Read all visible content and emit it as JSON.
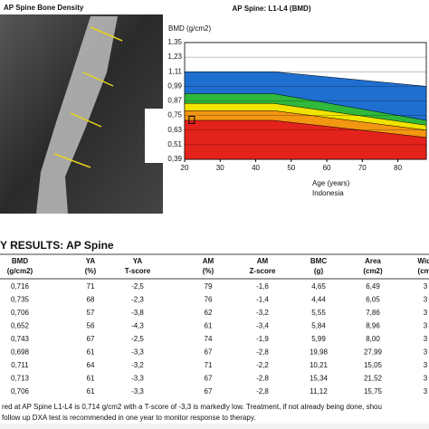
{
  "scan": {
    "title": "AP Spine Bone Density"
  },
  "chart_data": {
    "type": "reference-bands",
    "title": "AP Spine: L1-L4 (BMD)",
    "y_label": "BMD (g/cm2)",
    "x_label": "Age (years)",
    "population": "Indonesia",
    "x": [
      20,
      45,
      88
    ],
    "bands": [
      {
        "color": "#1f6fd0",
        "values": [
          1.11,
          1.11,
          0.99
        ]
      },
      {
        "color": "#2fb83a",
        "values": [
          0.93,
          0.93,
          0.71
        ]
      },
      {
        "color": "#f2e400",
        "values": [
          0.85,
          0.85,
          0.67
        ]
      },
      {
        "color": "#f39612",
        "values": [
          0.79,
          0.79,
          0.63
        ]
      },
      {
        "color": "#e3221b",
        "values": [
          0.71,
          0.71,
          0.57
        ]
      }
    ],
    "patient": {
      "x": 22,
      "y": 0.714
    },
    "xlim": [
      20,
      88
    ],
    "ylim": [
      0.39,
      1.35
    ],
    "xticks": [
      20,
      30,
      40,
      50,
      60,
      70,
      80
    ],
    "yticks": [
      {
        "value": 1.35,
        "label": "1,35"
      },
      {
        "value": 1.23,
        "label": "1,23"
      },
      {
        "value": 1.11,
        "label": "1,11"
      },
      {
        "value": 0.99,
        "label": "0,99"
      },
      {
        "value": 0.87,
        "label": "0,87"
      },
      {
        "value": 0.75,
        "label": "0,75"
      },
      {
        "value": 0.63,
        "label": "0,63"
      },
      {
        "value": 0.51,
        "label": "0,51"
      },
      {
        "value": 0.39,
        "label": "0,39"
      }
    ],
    "grid": true
  },
  "results": {
    "title": "Y RESULTS: AP Spine",
    "header": [
      [
        "BMD",
        "(g/cm2)"
      ],
      [
        "YA",
        "(%)"
      ],
      [
        "YA",
        "T-score"
      ],
      [
        "AM",
        "(%)"
      ],
      [
        "AM",
        "Z-score"
      ],
      [
        "BMC",
        "(g)"
      ],
      [
        "Area",
        "(cm2)"
      ],
      [
        "Widt",
        "(cm)"
      ]
    ],
    "rows": [
      [
        "0,716",
        "71",
        "-2,5",
        "79",
        "-1,6",
        "4,65",
        "6,49",
        "3"
      ],
      [
        "0,735",
        "68",
        "-2,3",
        "76",
        "-1,4",
        "4,44",
        "6,05",
        "3"
      ],
      [
        "0,706",
        "57",
        "-3,8",
        "62",
        "-3,2",
        "5,55",
        "7,86",
        "3"
      ],
      [
        "0,652",
        "56",
        "-4,3",
        "61",
        "-3,4",
        "5,84",
        "8,96",
        "3"
      ],
      [
        "0,743",
        "67",
        "-2,5",
        "74",
        "-1,9",
        "5,99",
        "8,00",
        "3"
      ],
      [
        "0,698",
        "61",
        "-3,3",
        "67",
        "-2,8",
        "19,98",
        "27,99",
        "3"
      ],
      [
        "0,711",
        "64",
        "-3,2",
        "71",
        "-2,2",
        "10,21",
        "15,05",
        "3"
      ],
      [
        "0,713",
        "61",
        "-3,3",
        "67",
        "-2,8",
        "15,34",
        "21,52",
        "3"
      ],
      [
        "0,706",
        "61",
        "-3,3",
        "67",
        "-2,8",
        "11,12",
        "15,75",
        "3"
      ]
    ]
  },
  "footer": [
    "red at AP Spine L1-L4 is 0,714 g/cm2 with a T-score of -3,3 is markedly low. Treatment, if not already being done, shou",
    "follow up DXA test is recommended in one year to monitor response to therapy."
  ]
}
